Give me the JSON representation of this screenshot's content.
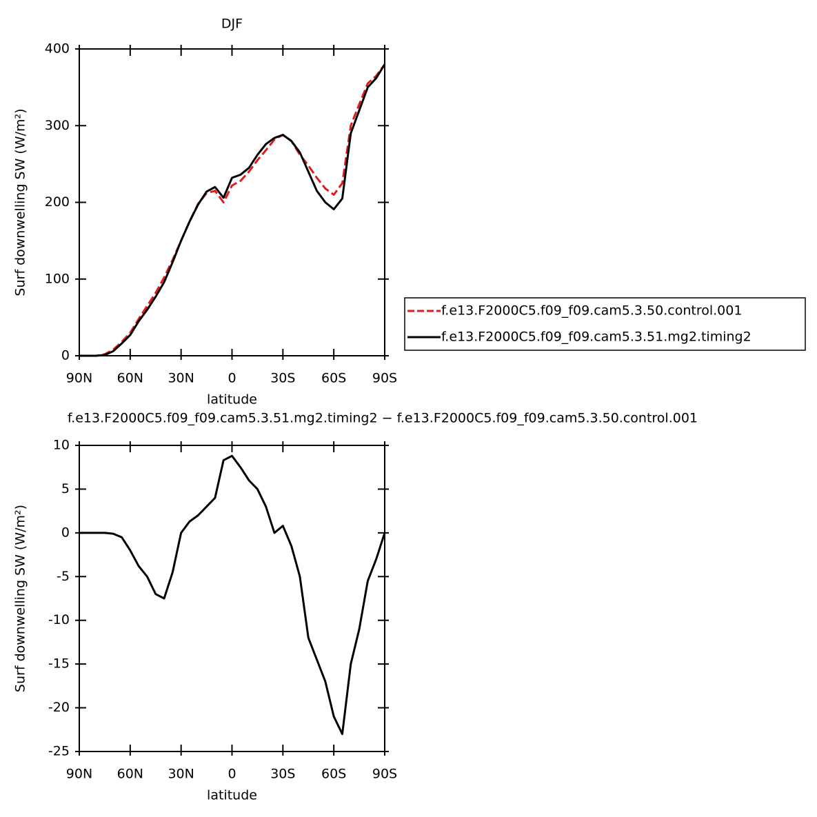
{
  "chart_data": [
    {
      "type": "line",
      "title": "DJF",
      "xlabel": "latitude",
      "ylabel": "Surf downwelling SW (W/m²)",
      "x": [
        90,
        85,
        80,
        75,
        70,
        65,
        60,
        55,
        50,
        45,
        40,
        35,
        30,
        25,
        20,
        15,
        10,
        5,
        0,
        -5,
        -10,
        -15,
        -20,
        -25,
        -30,
        -35,
        -40,
        -45,
        -50,
        -55,
        -60,
        -65,
        -70,
        -75,
        -80,
        -85,
        -90
      ],
      "xlim": [
        90,
        -90
      ],
      "xticks": [
        {
          "value": 90,
          "label": "90N"
        },
        {
          "value": 60,
          "label": "60N"
        },
        {
          "value": 30,
          "label": "30N"
        },
        0,
        {
          "value": -30,
          "label": "30S"
        },
        {
          "value": -60,
          "label": "60S"
        },
        {
          "value": -90,
          "label": "90S"
        }
      ],
      "ylim": [
        0,
        400
      ],
      "yticks": [
        0,
        100,
        200,
        300,
        400
      ],
      "legend": "right",
      "series": [
        {
          "name": "f.e13.F2000C5.f09_f09.cam5.3.50.control.001",
          "color": "#e31a1c",
          "dash": true,
          "values": [
            0,
            0,
            0,
            2,
            8,
            18,
            30,
            48,
            65,
            82,
            102,
            125,
            150,
            175,
            198,
            212,
            215,
            200,
            222,
            228,
            240,
            255,
            268,
            282,
            288,
            280,
            262,
            248,
            232,
            218,
            210,
            225,
            300,
            328,
            355,
            365,
            380
          ]
        },
        {
          "name": "f.e13.F2000C5.f09_f09.cam5.3.51.mg2.timing2",
          "color": "#000000",
          "dash": false,
          "values": [
            0,
            0,
            0,
            1,
            6,
            16,
            27,
            45,
            60,
            77,
            96,
            122,
            150,
            175,
            197,
            214,
            220,
            206,
            232,
            236,
            245,
            262,
            276,
            284,
            288,
            280,
            265,
            240,
            215,
            200,
            191,
            205,
            290,
            320,
            350,
            362,
            380
          ]
        }
      ]
    },
    {
      "type": "line",
      "title": "f.e13.F2000C5.f09_f09.cam5.3.51.mg2.timing2 − f.e13.F2000C5.f09_f09.cam5.3.50.control.001",
      "xlabel": "latitude",
      "ylabel": "Surf downwelling SW (W/m²)",
      "x": [
        90,
        85,
        80,
        75,
        70,
        65,
        60,
        55,
        50,
        45,
        40,
        35,
        30,
        25,
        20,
        15,
        10,
        5,
        0,
        -5,
        -10,
        -15,
        -20,
        -25,
        -30,
        -35,
        -40,
        -45,
        -50,
        -55,
        -60,
        -65,
        -70,
        -75,
        -80,
        -85,
        -90
      ],
      "xlim": [
        90,
        -90
      ],
      "xticks": [
        {
          "value": 90,
          "label": "90N"
        },
        {
          "value": 60,
          "label": "60N"
        },
        {
          "value": 30,
          "label": "30N"
        },
        0,
        {
          "value": -30,
          "label": "30S"
        },
        {
          "value": -60,
          "label": "60S"
        },
        {
          "value": -90,
          "label": "90S"
        }
      ],
      "ylim": [
        -25,
        10
      ],
      "yticks": [
        -25,
        -20,
        -15,
        -10,
        -5,
        0,
        5,
        10
      ],
      "series": [
        {
          "color": "#000000",
          "dash": false,
          "values": [
            0,
            0,
            0,
            0,
            -0.1,
            -0.5,
            -2,
            -3.8,
            -5,
            -7,
            -7.5,
            -4.5,
            0,
            1.3,
            2,
            3,
            4,
            8.3,
            8.8,
            7.5,
            6,
            5,
            3,
            0,
            0.8,
            -1.5,
            -5,
            -12,
            -14.5,
            -17,
            -21,
            -23,
            -15,
            -11,
            -5.5,
            -3,
            0
          ]
        }
      ]
    }
  ]
}
